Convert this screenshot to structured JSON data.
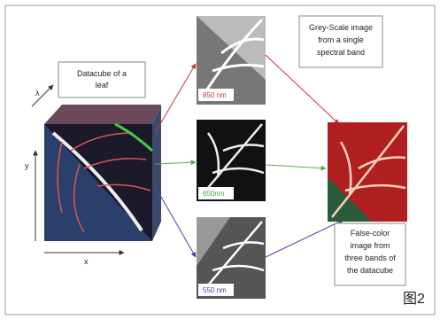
{
  "datacube": {
    "label": [
      "Datacube of a",
      "leaf"
    ],
    "axes": {
      "lambda": "λ",
      "y": "y",
      "x": "x"
    }
  },
  "bands": [
    {
      "label": "850 nm"
    },
    {
      "label": "650nm"
    },
    {
      "label": "550 nm"
    }
  ],
  "greyscale_note": [
    "Grey-Scale image",
    "from a single",
    "spectral band"
  ],
  "false_color_note": [
    "False-color",
    "image from",
    "three bands of",
    "the datacube"
  ],
  "figure_label": "图2"
}
